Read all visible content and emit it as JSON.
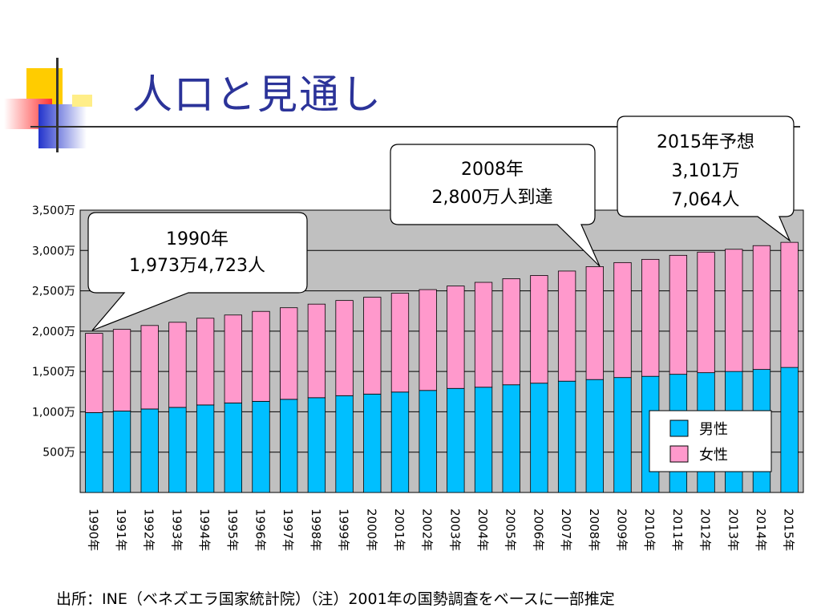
{
  "slide": {
    "title": "人口と見通し",
    "footnote": "出所：INE（ベネズエラ国家統計院）（注）2001年の国勢調査をベースに一部推定"
  },
  "colors": {
    "male": "#00bfff",
    "female": "#ff99cc",
    "plot_bg": "#c0c0c0",
    "title": "#2b3399"
  },
  "callouts": [
    {
      "lines": [
        "1990年",
        "1,973万4,723人"
      ]
    },
    {
      "lines": [
        "2008年",
        "2,800万人到達"
      ]
    },
    {
      "lines": [
        "2015年予想",
        "3,101万",
        "7,064人"
      ]
    }
  ],
  "chart_data": {
    "type": "bar",
    "stacked": true,
    "categories": [
      "1990年",
      "1991年",
      "1992年",
      "1993年",
      "1994年",
      "1995年",
      "1996年",
      "1997年",
      "1998年",
      "1999年",
      "2000年",
      "2001年",
      "2002年",
      "2003年",
      "2004年",
      "2005年",
      "2006年",
      "2007年",
      "2008年",
      "2009年",
      "2010年",
      "2011年",
      "2012年",
      "2013年",
      "2014年",
      "2015年"
    ],
    "series": [
      {
        "name": "男性",
        "color": "#00bfff",
        "values": [
          990,
          1010,
          1035,
          1055,
          1085,
          1110,
          1130,
          1155,
          1175,
          1200,
          1220,
          1245,
          1265,
          1290,
          1305,
          1335,
          1355,
          1380,
          1400,
          1425,
          1440,
          1465,
          1485,
          1500,
          1525,
          1550
        ]
      },
      {
        "name": "女性",
        "color": "#ff99cc",
        "values": [
          983,
          1012,
          1035,
          1055,
          1075,
          1090,
          1115,
          1135,
          1160,
          1180,
          1200,
          1225,
          1250,
          1270,
          1300,
          1315,
          1335,
          1365,
          1400,
          1425,
          1450,
          1475,
          1495,
          1515,
          1535,
          1551
        ]
      }
    ],
    "yticks": [
      "500万",
      "1,000万",
      "1,500万",
      "2,000万",
      "2,500万",
      "3,000万",
      "3,500万"
    ],
    "ytick_values": [
      500,
      1000,
      1500,
      2000,
      2500,
      3000,
      3500
    ],
    "ylim": [
      0,
      3500
    ],
    "grid": true,
    "legend": {
      "entries": [
        "男性",
        "女性"
      ],
      "position": "bottom-right"
    },
    "annotations": [
      "1990年 1,973万4,723人",
      "2008年 2,800万人到達",
      "2015年予想 3,101万 7,064人"
    ]
  }
}
